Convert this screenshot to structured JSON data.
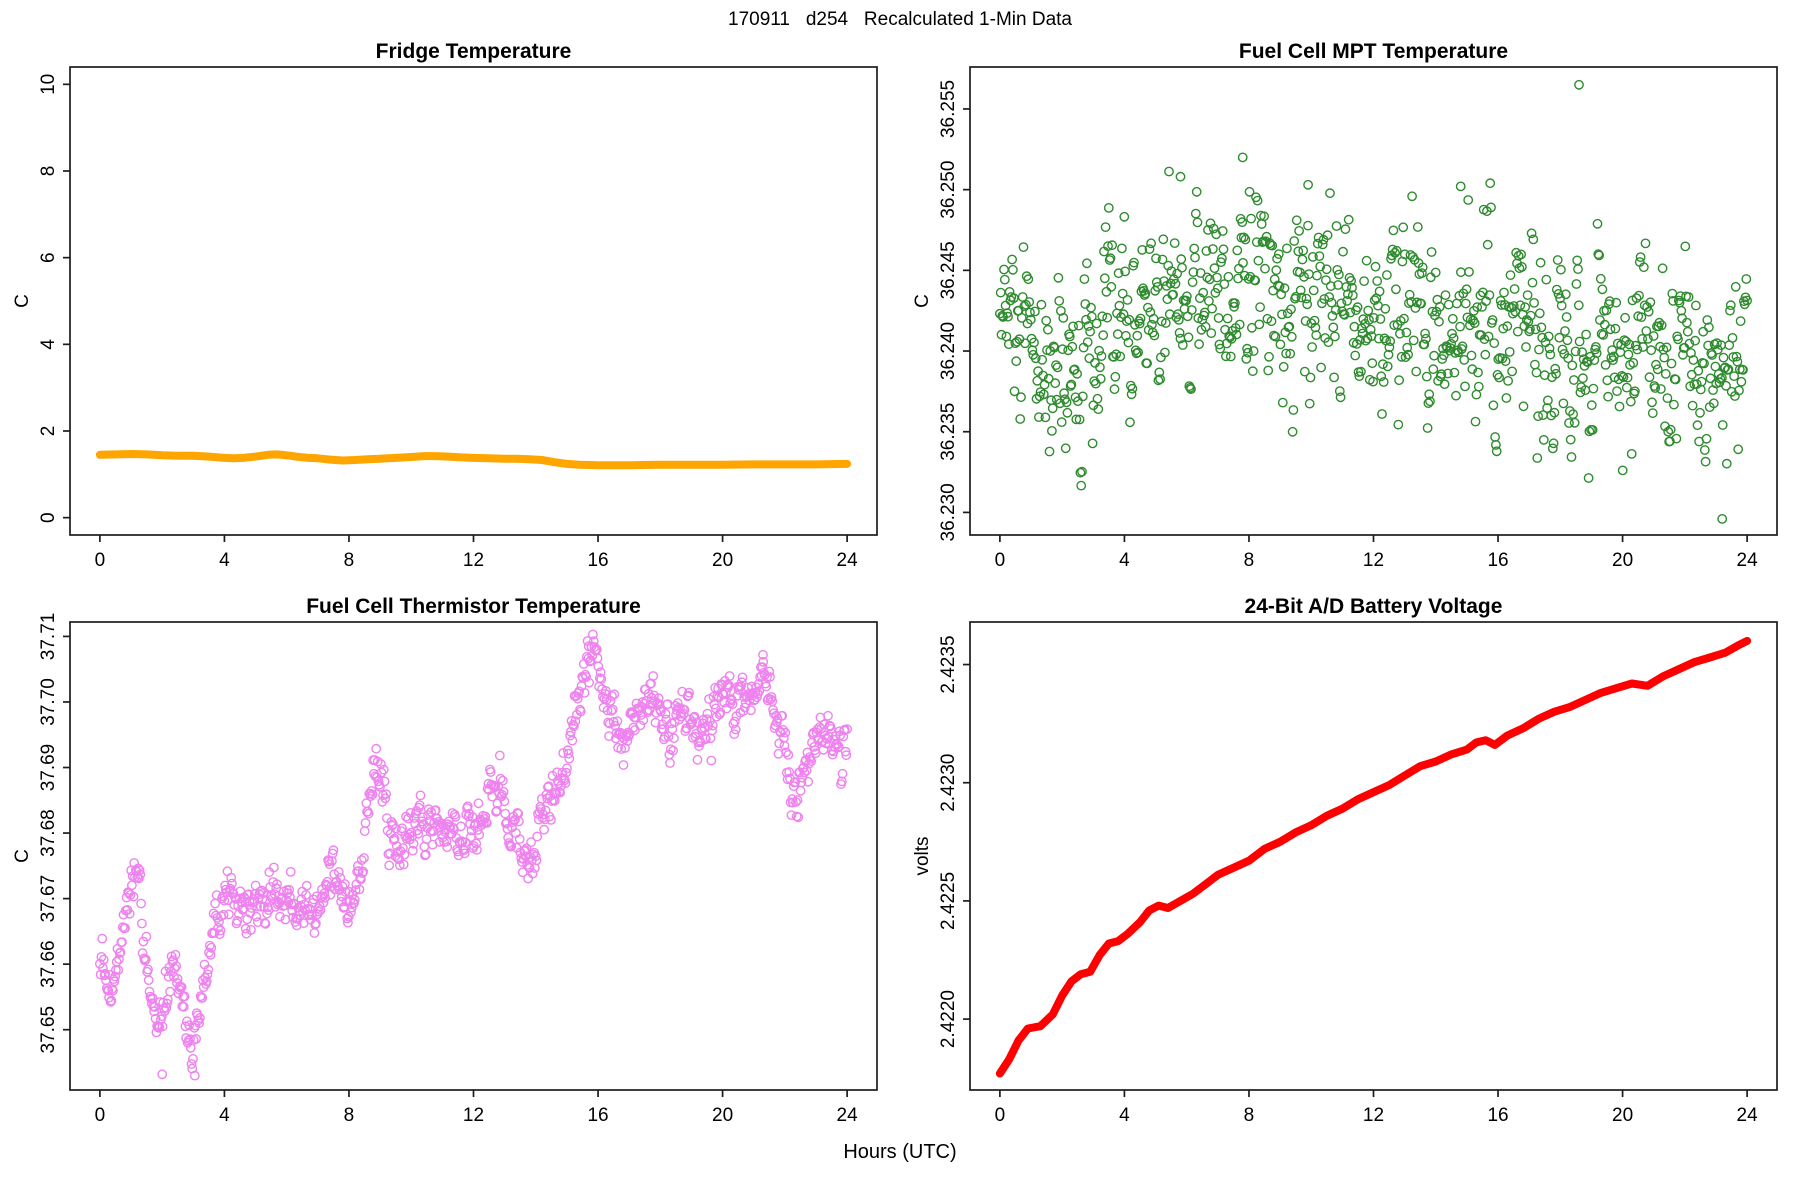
{
  "title": "170911   d254   Recalculated 1-Min Data",
  "xlabel": "Hours (UTC)",
  "axis_color": "#1c1c1c",
  "chart_data": [
    {
      "id": "fridge",
      "type": "line",
      "title": "Fridge Temperature",
      "ylabel": "C",
      "xlabel": "Hours (UTC)",
      "color": "#FFA500",
      "line_width": 8,
      "xlim": [
        -0.96,
        24.96
      ],
      "ylim": [
        -0.4,
        10.4
      ],
      "xticks": [
        0,
        4,
        8,
        12,
        16,
        20,
        24
      ],
      "xtick_labels": [
        "0",
        "4",
        "8",
        "12",
        "16",
        "20",
        "24"
      ],
      "yticks": [
        0,
        2,
        4,
        6,
        8,
        10
      ],
      "ytick_labels": [
        "0",
        "2",
        "4",
        "6",
        "8",
        "10"
      ],
      "x": [
        0,
        0.5,
        1,
        1.5,
        2,
        2.5,
        3,
        3.5,
        4,
        4.3,
        4.6,
        5,
        5.4,
        5.7,
        6,
        6.3,
        6.7,
        7,
        7.4,
        7.8,
        8.2,
        8.6,
        9,
        9.5,
        10,
        10.4,
        10.8,
        11.2,
        11.6,
        12,
        12.5,
        13,
        13.4,
        13.8,
        14.2,
        14.6,
        15,
        15.4,
        16,
        17,
        18,
        19,
        20,
        21,
        22,
        23,
        24
      ],
      "y": [
        1.45,
        1.46,
        1.47,
        1.46,
        1.44,
        1.43,
        1.43,
        1.41,
        1.38,
        1.37,
        1.38,
        1.41,
        1.45,
        1.46,
        1.44,
        1.41,
        1.38,
        1.37,
        1.34,
        1.32,
        1.33,
        1.35,
        1.36,
        1.38,
        1.4,
        1.42,
        1.42,
        1.41,
        1.39,
        1.38,
        1.37,
        1.36,
        1.36,
        1.35,
        1.33,
        1.28,
        1.24,
        1.22,
        1.21,
        1.21,
        1.22,
        1.22,
        1.22,
        1.23,
        1.23,
        1.23,
        1.24
      ]
    },
    {
      "id": "mpt",
      "type": "scatter",
      "title": "Fuel Cell MPT Temperature",
      "ylabel": "C",
      "xlabel": "Hours (UTC)",
      "color": "#2E8B2E",
      "marker_radius": 4.2,
      "marker_stroke": 1.4,
      "xlim": [
        -0.96,
        24.96
      ],
      "ylim": [
        36.2286,
        36.2576
      ],
      "xticks": [
        0,
        4,
        8,
        12,
        16,
        20,
        24
      ],
      "xtick_labels": [
        "0",
        "4",
        "8",
        "12",
        "16",
        "20",
        "24"
      ],
      "yticks": [
        36.23,
        36.235,
        36.24,
        36.245,
        36.25,
        36.255
      ],
      "ytick_labels": [
        "36.230",
        "36.235",
        "36.240",
        "36.245",
        "36.250",
        "36.255"
      ],
      "n": 920,
      "noise_sd": 0.003,
      "noise_ar": 0.45,
      "seed": 12345,
      "value_range": [
        36.2303,
        36.2516
      ],
      "x": [
        0,
        0.5,
        1,
        1.5,
        2,
        2.5,
        3,
        3.5,
        4,
        4.5,
        5,
        5.5,
        6,
        6.5,
        7,
        7.5,
        8,
        8.5,
        9,
        9.5,
        10,
        10.5,
        11,
        11.5,
        12,
        12.5,
        13,
        13.5,
        14,
        14.5,
        15,
        15.5,
        16,
        16.5,
        17,
        17.5,
        18,
        18.5,
        19,
        19.5,
        20,
        20.5,
        21,
        21.5,
        22,
        22.5,
        23,
        23.5,
        24
      ],
      "y": [
        36.2425,
        36.24,
        36.239,
        36.2378,
        36.2396,
        36.2368,
        36.238,
        36.2408,
        36.2415,
        36.242,
        36.243,
        36.2436,
        36.244,
        36.2438,
        36.2442,
        36.244,
        36.2438,
        36.2436,
        36.243,
        36.2428,
        36.2425,
        36.2422,
        36.2428,
        36.2425,
        36.242,
        36.2418,
        36.2415,
        36.2418,
        36.2412,
        36.241,
        36.2424,
        36.2419,
        36.2408,
        36.2405,
        36.2408,
        36.241,
        36.2405,
        36.2408,
        36.2402,
        36.24,
        36.2398,
        36.24,
        36.2395,
        36.239,
        36.2392,
        36.2388,
        36.2385,
        36.239,
        36.2395
      ],
      "outliers": [
        [
          18.6,
          36.2565
        ],
        [
          23.2,
          36.2296
        ],
        [
          7.8,
          36.252
        ],
        [
          5.8,
          36.2508
        ],
        [
          9.9,
          36.2503
        ],
        [
          14.8,
          36.2502
        ]
      ]
    },
    {
      "id": "thermistor",
      "type": "scatter",
      "title": "Fuel Cell Thermistor Temperature",
      "ylabel": "C",
      "xlabel": "Hours (UTC)",
      "color": "#EE82EE",
      "marker_radius": 4.2,
      "marker_stroke": 1.4,
      "xlim": [
        -0.96,
        24.96
      ],
      "ylim": [
        37.6408,
        37.7122
      ],
      "xticks": [
        0,
        4,
        8,
        12,
        16,
        20,
        24
      ],
      "xtick_labels": [
        "0",
        "4",
        "8",
        "12",
        "16",
        "20",
        "24"
      ],
      "yticks": [
        37.65,
        37.66,
        37.67,
        37.68,
        37.69,
        37.7,
        37.71
      ],
      "ytick_labels": [
        "37.65",
        "37.66",
        "37.67",
        "37.68",
        "37.69",
        "37.70",
        "37.71"
      ],
      "n": 980,
      "noise_sd": 0.0022,
      "noise_ar": 0.5,
      "seed": 99,
      "value_range": [
        37.6428,
        37.7108
      ],
      "x": [
        0,
        0.3,
        0.6,
        0.9,
        1.2,
        1.5,
        1.8,
        2.1,
        2.4,
        2.7,
        3.0,
        3.2,
        3.5,
        3.8,
        4.1,
        4.4,
        4.7,
        5.0,
        5.5,
        6.0,
        6.5,
        7.0,
        7.5,
        8.0,
        8.3,
        8.6,
        8.8,
        9.1,
        9.4,
        9.7,
        10.0,
        10.5,
        11.0,
        11.5,
        12.0,
        12.3,
        12.6,
        12.9,
        13.2,
        13.5,
        13.8,
        14.1,
        14.4,
        14.7,
        15.0,
        15.3,
        15.6,
        15.9,
        16.2,
        16.5,
        16.8,
        17.1,
        17.4,
        17.7,
        18.0,
        18.3,
        18.6,
        19.0,
        19.3,
        19.6,
        20.0,
        20.3,
        20.6,
        20.9,
        21.2,
        21.5,
        21.8,
        22.1,
        22.4,
        22.7,
        23.0,
        23.3,
        23.6,
        24.0
      ],
      "y": [
        37.659,
        37.655,
        37.662,
        37.67,
        37.673,
        37.66,
        37.648,
        37.655,
        37.661,
        37.655,
        37.647,
        37.652,
        37.66,
        37.668,
        37.671,
        37.668,
        37.667,
        37.669,
        37.67,
        37.669,
        37.668,
        37.67,
        37.672,
        37.669,
        37.673,
        37.68,
        37.69,
        37.686,
        37.68,
        37.679,
        37.681,
        37.68,
        37.681,
        37.68,
        37.68,
        37.682,
        37.689,
        37.685,
        37.68,
        37.678,
        37.676,
        37.68,
        37.684,
        37.688,
        37.692,
        37.698,
        37.705,
        37.706,
        37.7,
        37.697,
        37.694,
        37.697,
        37.699,
        37.701,
        37.698,
        37.696,
        37.697,
        37.698,
        37.696,
        37.697,
        37.699,
        37.701,
        37.702,
        37.7,
        37.702,
        37.703,
        37.697,
        37.689,
        37.686,
        37.691,
        37.694,
        37.696,
        37.694,
        37.693
      ],
      "outliers": [
        [
          15.7,
          37.7085
        ],
        [
          21.3,
          37.7072
        ],
        [
          2.0,
          37.6432
        ],
        [
          3.05,
          37.643
        ]
      ]
    },
    {
      "id": "battery",
      "type": "line",
      "title": "24-Bit A/D Battery Voltage",
      "ylabel": "volts",
      "xlabel": "Hours (UTC)",
      "color": "#FF0000",
      "line_width": 8,
      "xlim": [
        -0.96,
        24.96
      ],
      "ylim": [
        2.4217,
        2.42368
      ],
      "xticks": [
        0,
        4,
        8,
        12,
        16,
        20,
        24
      ],
      "xtick_labels": [
        "0",
        "4",
        "8",
        "12",
        "16",
        "20",
        "24"
      ],
      "yticks": [
        2.422,
        2.4225,
        2.423,
        2.4235
      ],
      "ytick_labels": [
        "2.4220",
        "2.4225",
        "2.4230",
        "2.4235"
      ],
      "x": [
        0,
        0.3,
        0.6,
        0.9,
        1.3,
        1.7,
        2.0,
        2.3,
        2.6,
        2.9,
        3.2,
        3.5,
        3.8,
        4.1,
        4.5,
        4.8,
        5.1,
        5.4,
        5.8,
        6.2,
        6.6,
        7.0,
        7.5,
        8.0,
        8.5,
        9.0,
        9.5,
        10.0,
        10.5,
        11.0,
        11.5,
        12.0,
        12.5,
        13.0,
        13.5,
        14.0,
        14.5,
        15.0,
        15.3,
        15.6,
        15.9,
        16.3,
        16.8,
        17.3,
        17.8,
        18.3,
        18.8,
        19.3,
        19.8,
        20.3,
        20.8,
        21.3,
        21.8,
        22.3,
        22.8,
        23.3,
        23.7,
        24.0
      ],
      "y": [
        2.42177,
        2.42183,
        2.42191,
        2.42196,
        2.42197,
        2.42202,
        2.4221,
        2.42216,
        2.42219,
        2.4222,
        2.42227,
        2.42232,
        2.42233,
        2.42236,
        2.42241,
        2.42246,
        2.42248,
        2.42247,
        2.4225,
        2.42253,
        2.42257,
        2.42261,
        2.42264,
        2.42267,
        2.42272,
        2.42275,
        2.42279,
        2.42282,
        2.42286,
        2.42289,
        2.42293,
        2.42296,
        2.42299,
        2.42303,
        2.42307,
        2.42309,
        2.42312,
        2.42314,
        2.42317,
        2.42318,
        2.42316,
        2.4232,
        2.42323,
        2.42327,
        2.4233,
        2.42332,
        2.42335,
        2.42338,
        2.4234,
        2.42342,
        2.42341,
        2.42345,
        2.42348,
        2.42351,
        2.42353,
        2.42355,
        2.42358,
        2.4236
      ]
    }
  ]
}
